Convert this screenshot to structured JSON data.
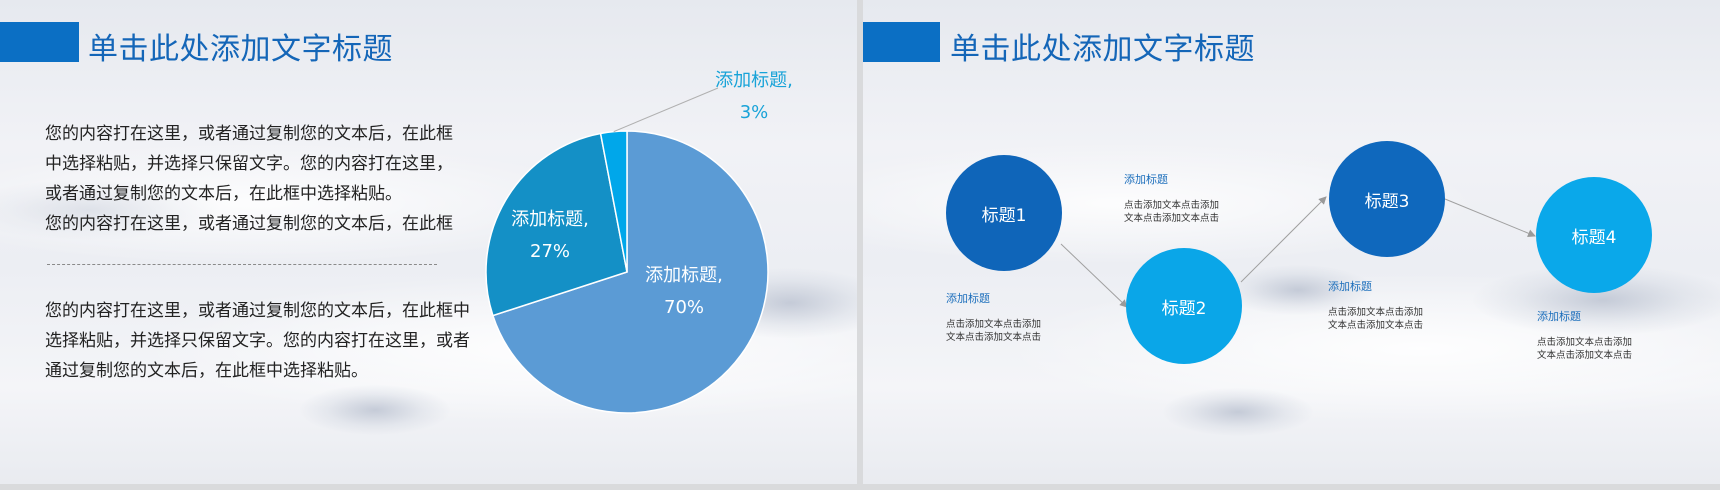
{
  "slide_left": {
    "title": "单击此处添加文字标题",
    "paragraph_top": [
      "您的内容打在这里，或者通过复制您的文本后，在此框",
      "中选择粘贴，并选择只保留文字。您的内容打在这里，",
      "或者通过复制您的文本后，在此框中选择粘贴。",
      "您的内容打在这里，或者通过复制您的文本后，在此框"
    ],
    "paragraph_bottom": [
      "您的内容打在这里，或者通过复制您的文本后，在此框中",
      "选择粘贴，并选择只保留文字。您的内容打在这里，或者",
      "通过复制您的文本后，在此框中选择粘贴。"
    ]
  },
  "chart_data": {
    "type": "pie",
    "slices": [
      {
        "label": "添加标题,",
        "value": 70,
        "value_text": "70%",
        "color": "#5b9bd5"
      },
      {
        "label": "添加标题,",
        "value": 27,
        "value_text": "27%",
        "color": "#1490c6"
      },
      {
        "label": "添加标题,",
        "value": 3,
        "value_text": "3%",
        "color": "#00a7ea"
      }
    ]
  },
  "slide_right": {
    "title": "单击此处添加文字标题",
    "nodes": [
      {
        "label": "标题1",
        "color": "#0f65b9"
      },
      {
        "label": "标题2",
        "color": "#0aa6e8"
      },
      {
        "label": "标题3",
        "color": "#0f68bd"
      },
      {
        "label": "标题4",
        "color": "#0aa8ea"
      }
    ],
    "notes": [
      {
        "title": "添加标题",
        "text": [
          "点击添加文本点击添加",
          "文本点击添加文本点击"
        ]
      },
      {
        "title": "添加标题",
        "text": [
          "点击添加文本点击添加",
          "文本点击添加文本点击"
        ]
      },
      {
        "title": "添加标题",
        "text": [
          "点击添加文本点击添加",
          "文本点击添加文本点击"
        ]
      },
      {
        "title": "添加标题",
        "text": [
          "点击添加文本点击添加",
          "文本点击添加文本点击"
        ]
      }
    ]
  },
  "colors": {
    "accent": "#0b6fc4",
    "title_text": "#1466b8"
  }
}
